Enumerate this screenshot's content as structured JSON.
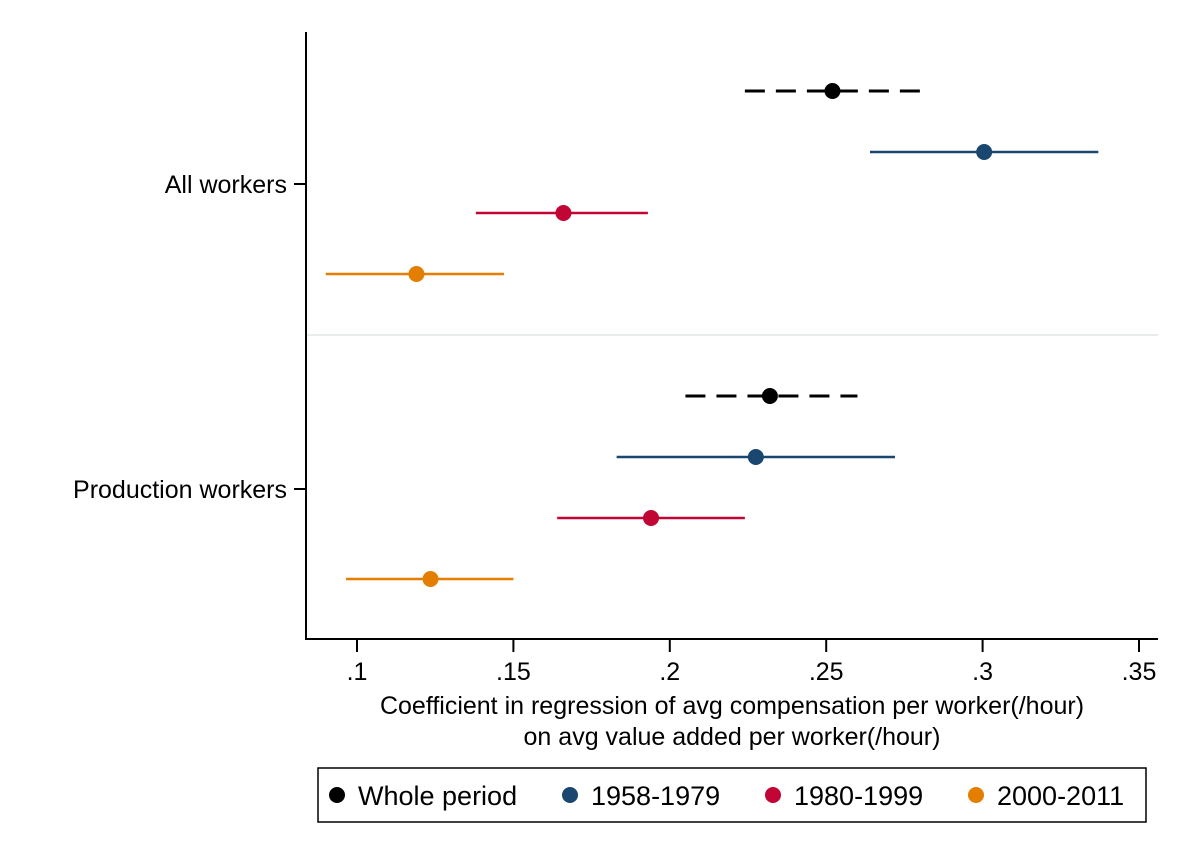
{
  "chart_data": {
    "type": "scatter",
    "subtype": "coefficient-plot-with-confidence-intervals",
    "orientation": "horizontal",
    "xlabel_line1": "Coefficient in regression of avg compensation per worker(/hour)",
    "xlabel_line2": "on avg value added per worker(/hour)",
    "xlim": [
      0.084,
      0.356
    ],
    "x_ticks": [
      {
        "value": 0.1,
        "label": ".1"
      },
      {
        "value": 0.15,
        "label": ".15"
      },
      {
        "value": 0.2,
        "label": ".2"
      },
      {
        "value": 0.25,
        "label": ".25"
      },
      {
        "value": 0.3,
        "label": ".3"
      },
      {
        "value": 0.35,
        "label": ".35"
      }
    ],
    "grid": false,
    "legend_position": "bottom",
    "categories": [
      "All workers",
      "Production workers"
    ],
    "series": [
      {
        "name": "Whole period",
        "color": "#000000",
        "line_style": "dashed",
        "points": [
          {
            "category": "All workers",
            "estimate": 0.252,
            "ci_low": 0.224,
            "ci_high": 0.28
          },
          {
            "category": "Production workers",
            "estimate": 0.232,
            "ci_low": 0.205,
            "ci_high": 0.26
          }
        ]
      },
      {
        "name": "1958-1979",
        "color": "#1a476f",
        "line_style": "solid",
        "points": [
          {
            "category": "All workers",
            "estimate": 0.3005,
            "ci_low": 0.264,
            "ci_high": 0.337
          },
          {
            "category": "Production workers",
            "estimate": 0.2275,
            "ci_low": 0.183,
            "ci_high": 0.272
          }
        ]
      },
      {
        "name": "1980-1999",
        "color": "#c10534",
        "line_style": "solid",
        "points": [
          {
            "category": "All workers",
            "estimate": 0.166,
            "ci_low": 0.138,
            "ci_high": 0.193
          },
          {
            "category": "Production workers",
            "estimate": 0.194,
            "ci_low": 0.164,
            "ci_high": 0.224
          }
        ]
      },
      {
        "name": "2000-2011",
        "color": "#e37e00",
        "line_style": "solid",
        "points": [
          {
            "category": "All workers",
            "estimate": 0.119,
            "ci_low": 0.09,
            "ci_high": 0.147
          },
          {
            "category": "Production workers",
            "estimate": 0.1235,
            "ci_low": 0.0965,
            "ci_high": 0.15
          }
        ]
      }
    ]
  }
}
